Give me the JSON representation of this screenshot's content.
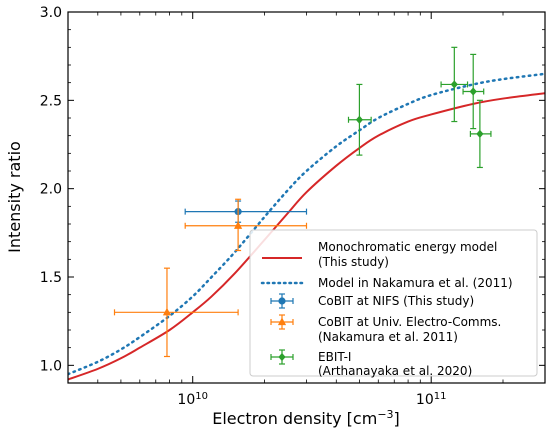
{
  "chart_data": {
    "type": "line",
    "xlabel": "Electron density [cm",
    "xlabel_sup": "−3",
    "xlabel_end": "]",
    "ylabel": "Intensity ratio",
    "x_scale": "log",
    "xlim": [
      3000000000,
      300000000000
    ],
    "ylim": [
      0.9,
      3.0
    ],
    "x_major_ticks": [
      {
        "value": 10000000000,
        "base": "10",
        "exp": "10"
      },
      {
        "value": 100000000000,
        "base": "10",
        "exp": "11"
      }
    ],
    "y_ticks": [
      1.0,
      1.5,
      2.0,
      2.5,
      3.0
    ],
    "y_tick_labels": [
      "1.0",
      "1.5",
      "2.0",
      "2.5",
      "3.0"
    ],
    "legend_placement": "lower-right",
    "lines": [
      {
        "name": "Monochromatic energy model",
        "name_line2": "(This study)",
        "color": "#d62728",
        "style": "solid",
        "x": [
          3000000000,
          4000000000,
          5000000000,
          6000000000,
          8000000000,
          10000000000,
          12000000000,
          15000000000,
          20000000000,
          25000000000,
          30000000000,
          40000000000,
          50000000000,
          60000000000,
          80000000000,
          100000000000,
          150000000000,
          200000000000,
          300000000000
        ],
        "y": [
          0.92,
          0.98,
          1.04,
          1.1,
          1.2,
          1.3,
          1.39,
          1.52,
          1.71,
          1.86,
          1.98,
          2.13,
          2.23,
          2.3,
          2.38,
          2.42,
          2.48,
          2.51,
          2.54
        ]
      },
      {
        "name": "Model in Nakamura et al. (2011)",
        "color": "#1f77b4",
        "style": "dotted",
        "x": [
          3000000000,
          4000000000,
          5000000000,
          6000000000,
          8000000000,
          10000000000,
          12000000000,
          15000000000,
          20000000000,
          25000000000,
          30000000000,
          40000000000,
          50000000000,
          60000000000,
          80000000000,
          100000000000,
          150000000000,
          200000000000,
          300000000000
        ],
        "y": [
          0.95,
          1.02,
          1.09,
          1.16,
          1.28,
          1.39,
          1.5,
          1.64,
          1.84,
          1.99,
          2.1,
          2.24,
          2.33,
          2.4,
          2.48,
          2.53,
          2.59,
          2.62,
          2.65
        ]
      }
    ],
    "series": [
      {
        "name": "CoBIT at NIFS (This study)",
        "color": "#1f77b4",
        "marker": "circle",
        "points": [
          {
            "x": 15500000000,
            "y": 1.87,
            "xerr": [
              9300000000,
              30000000000
            ],
            "yerr": [
              1.81,
              1.93
            ]
          }
        ]
      },
      {
        "name": "CoBIT at Univ. Electro-Comms.",
        "name_line2": "(Nakamura et al. 2011)",
        "color": "#ff7f0e",
        "marker": "triangle",
        "points": [
          {
            "x": 15500000000,
            "y": 1.79,
            "xerr": [
              9300000000,
              30000000000
            ],
            "yerr": [
              1.65,
              1.94
            ]
          },
          {
            "x": 7800000000,
            "y": 1.3,
            "xerr": [
              4700000000,
              15500000000
            ],
            "yerr": [
              1.05,
              1.55
            ]
          }
        ]
      },
      {
        "name": "EBIT-I",
        "name_line2": "(Arthanayaka et al. 2020)",
        "color": "#2ca02c",
        "marker": "diamond",
        "points": [
          {
            "x": 50000000000,
            "y": 2.39,
            "xerr": [
              45000000000,
              56000000000
            ],
            "yerr": [
              2.19,
              2.59
            ]
          },
          {
            "x": 125000000000,
            "y": 2.59,
            "xerr": [
              110000000000,
              142000000000
            ],
            "yerr": [
              2.38,
              2.8
            ]
          },
          {
            "x": 150000000000,
            "y": 2.55,
            "xerr": [
              136000000000,
              166000000000
            ],
            "yerr": [
              2.34,
              2.76
            ]
          },
          {
            "x": 160000000000,
            "y": 2.31,
            "xerr": [
              146000000000,
              178000000000
            ],
            "yerr": [
              2.12,
              2.5
            ]
          }
        ]
      }
    ]
  }
}
